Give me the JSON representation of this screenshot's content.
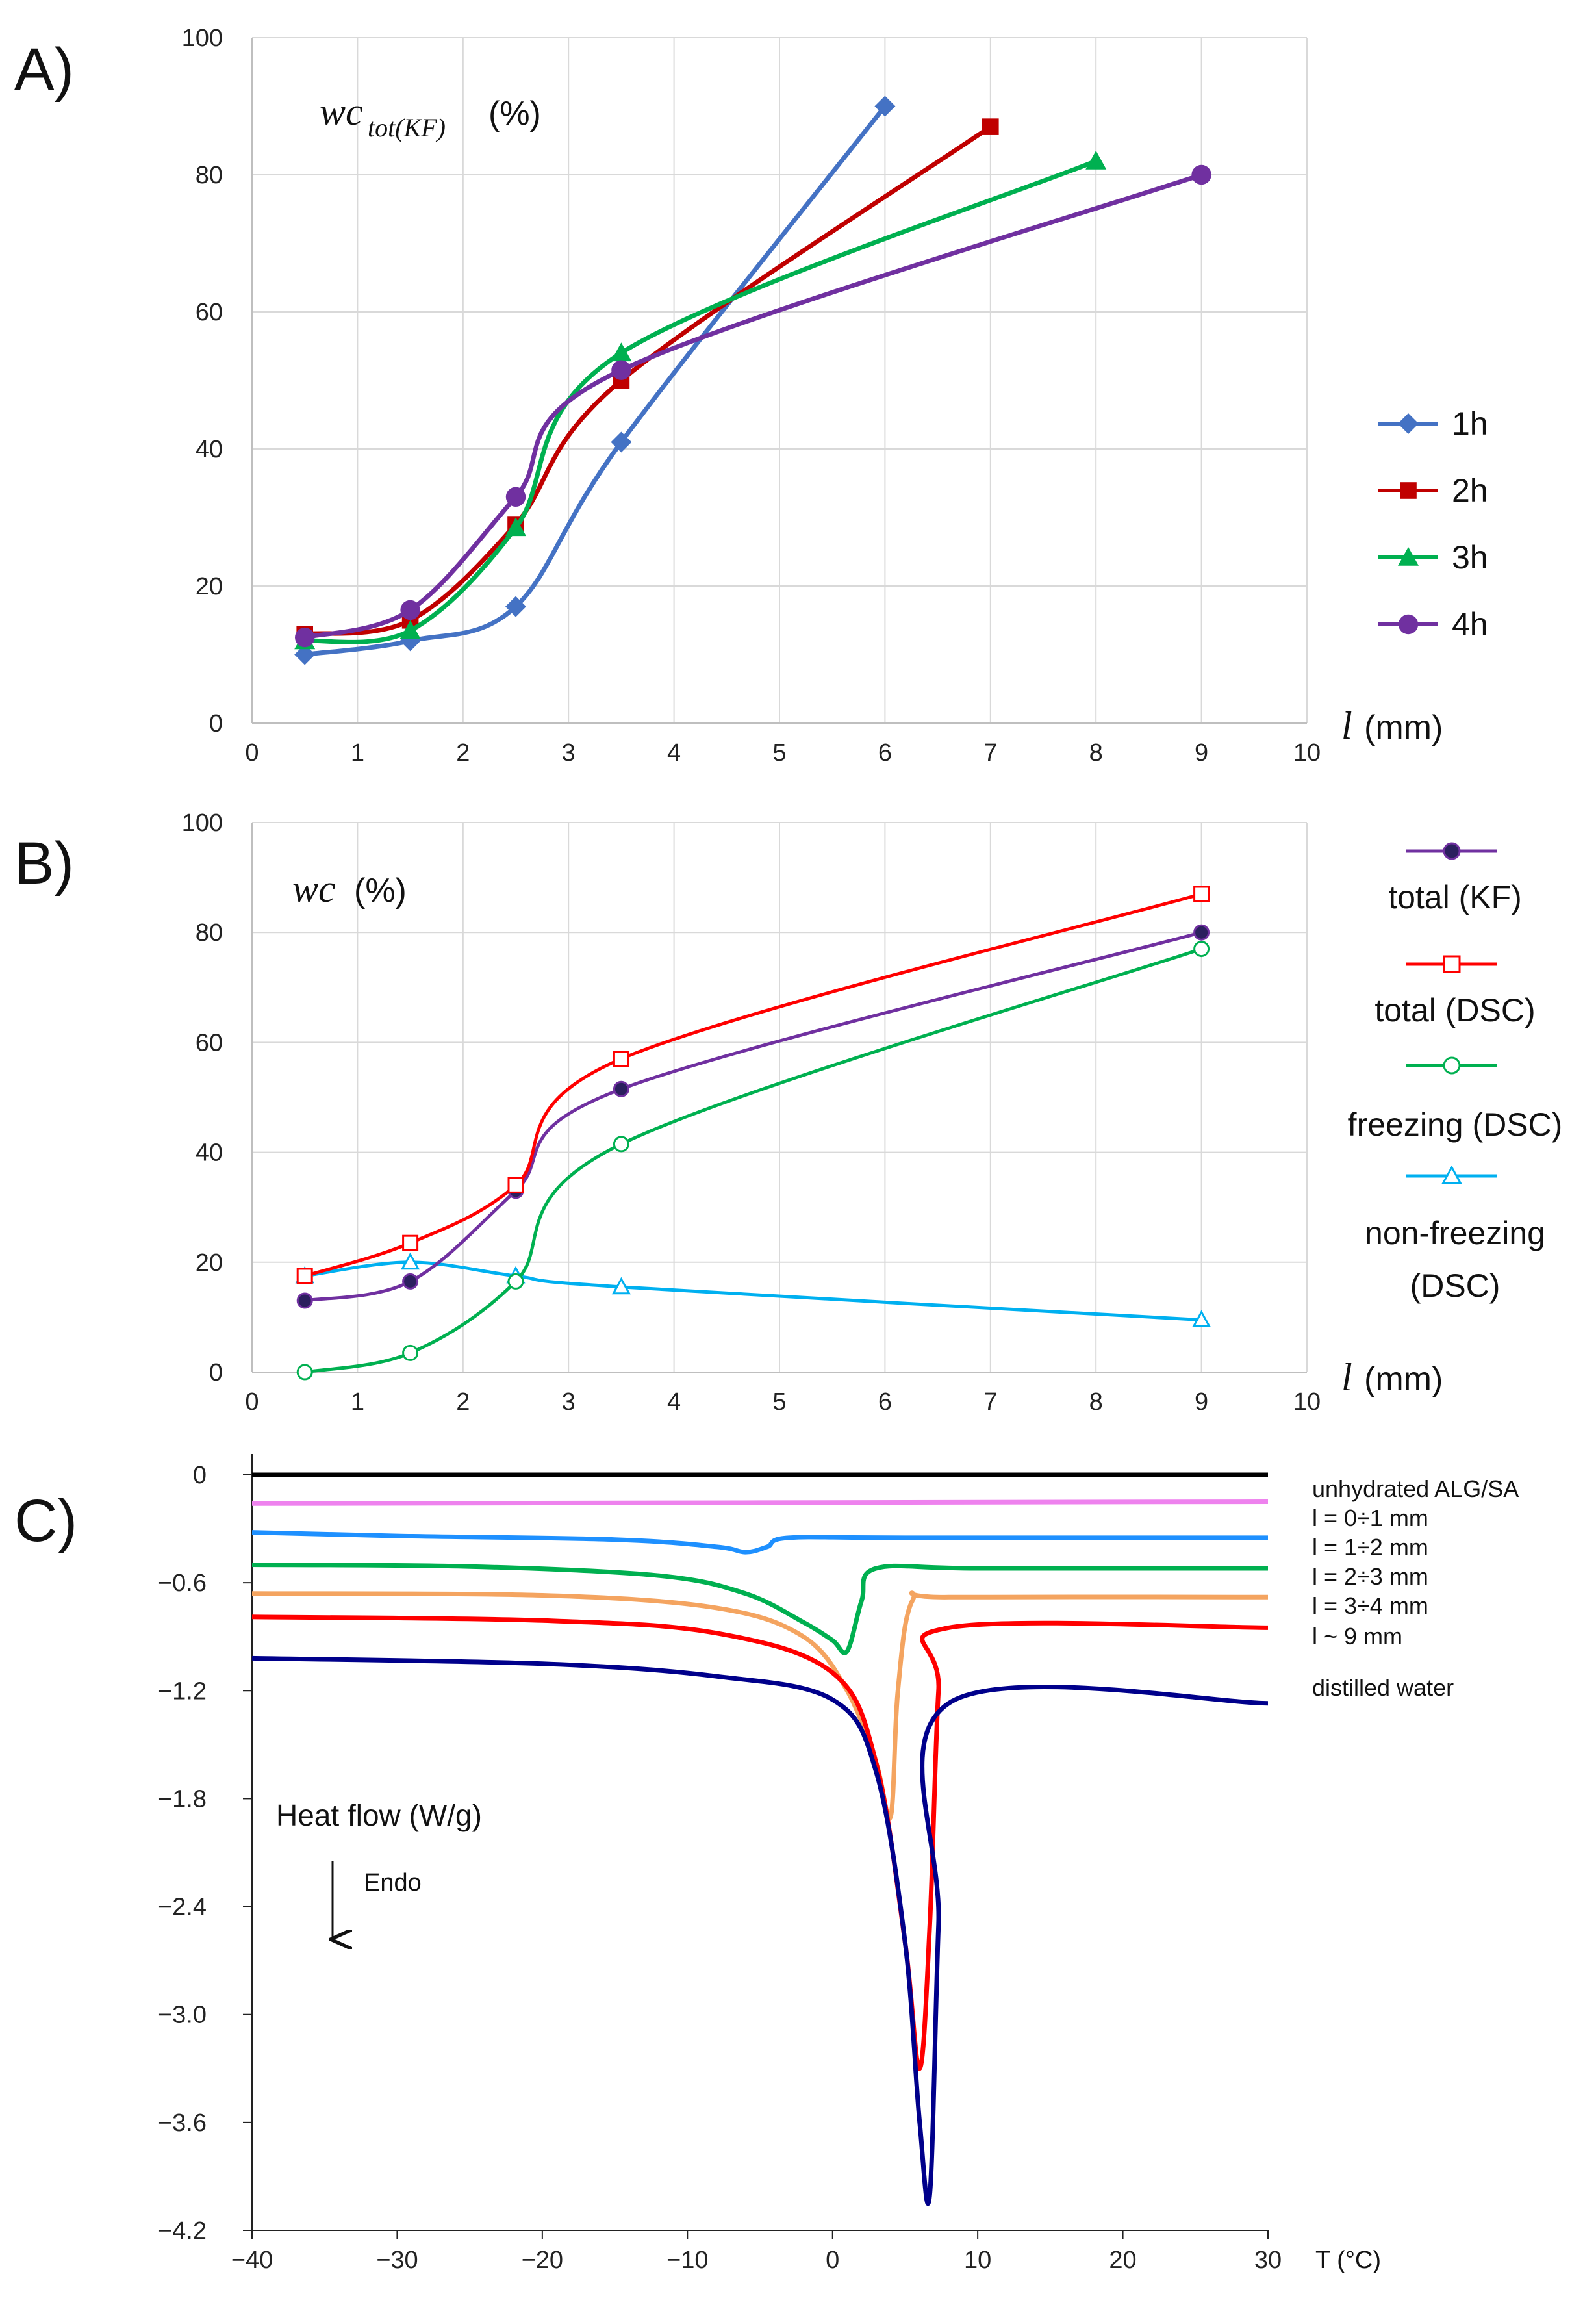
{
  "chart_data": [
    {
      "panel": "A)",
      "type": "line",
      "ylabel_var": "wc",
      "ylabel_sub": "tot(KF)",
      "ylabel_unit": "(%)",
      "xlabel_var": "l",
      "xlabel_unit": "(mm)",
      "xlim": [
        0,
        10
      ],
      "ylim": [
        0,
        100
      ],
      "xticks": [
        "0",
        "1",
        "2",
        "3",
        "4",
        "5",
        "6",
        "7",
        "8",
        "9",
        "10"
      ],
      "yticks": [
        "0",
        "20",
        "40",
        "60",
        "80",
        "100"
      ],
      "grid": true,
      "legend_position": "right",
      "series": [
        {
          "name": "1h",
          "color": "#4472C4",
          "marker": "diamond",
          "x": [
            0.5,
            1.5,
            2.5,
            3.5,
            6
          ],
          "y": [
            10,
            12,
            17,
            41,
            90
          ]
        },
        {
          "name": "2h",
          "color": "#C00000",
          "marker": "square",
          "x": [
            0.5,
            1.5,
            2.5,
            3.5,
            7
          ],
          "y": [
            13,
            15,
            29,
            50,
            87
          ]
        },
        {
          "name": "3h",
          "color": "#00B050",
          "marker": "triangle",
          "x": [
            0.5,
            1.5,
            2.5,
            3.5,
            8
          ],
          "y": [
            12,
            13.5,
            28.5,
            54,
            82
          ]
        },
        {
          "name": "4h",
          "color": "#7030A0",
          "marker": "circle",
          "x": [
            0.5,
            1.5,
            2.5,
            3.5,
            9
          ],
          "y": [
            12.5,
            16.5,
            33,
            51.5,
            80
          ]
        }
      ]
    },
    {
      "panel": "B)",
      "type": "line",
      "ylabel_var": "wc",
      "ylabel_unit": "(%)",
      "xlabel_var": "l",
      "xlabel_unit": "(mm)",
      "xlim": [
        0,
        10
      ],
      "ylim": [
        0,
        100
      ],
      "xticks": [
        "0",
        "1",
        "2",
        "3",
        "4",
        "5",
        "6",
        "7",
        "8",
        "9",
        "10"
      ],
      "yticks": [
        "0",
        "20",
        "40",
        "60",
        "80",
        "100"
      ],
      "grid": true,
      "legend_position": "right",
      "series": [
        {
          "name": "total (KF)",
          "color": "#7030A0",
          "marker": "filled-circle",
          "x": [
            0.5,
            1.5,
            2.5,
            3.5,
            9
          ],
          "y": [
            13,
            16.5,
            33,
            51.5,
            80
          ]
        },
        {
          "name": "total (DSC)",
          "color": "#FF0000",
          "marker": "open-square",
          "x": [
            0.5,
            1.5,
            2.5,
            3.5,
            9
          ],
          "y": [
            17.5,
            23.5,
            34,
            57,
            87
          ]
        },
        {
          "name": "freezing (DSC)",
          "color": "#00B050",
          "marker": "open-circle",
          "x": [
            0.5,
            1.5,
            2.5,
            3.5,
            9
          ],
          "y": [
            0,
            3.5,
            16.5,
            41.5,
            77
          ]
        },
        {
          "name": "non-freezing (DSC)",
          "color": "#00B0F0",
          "marker": "open-triangle",
          "x": [
            0.5,
            1.5,
            2.5,
            3.5,
            9
          ],
          "y": [
            17.5,
            20,
            17.5,
            15.5,
            9.5
          ]
        }
      ]
    },
    {
      "panel": "C)",
      "type": "line",
      "ylabel": "Heat flow (W/g)",
      "annotation_arrow": "Endo",
      "xlabel": "T (°C)",
      "xlim": [
        -40,
        30
      ],
      "ylim": [
        -4.2,
        0.2
      ],
      "xticks": [
        "−40",
        "−30",
        "−20",
        "−10",
        "0",
        "10",
        "20",
        "30"
      ],
      "yticks": [
        "0",
        "−0.6",
        "−1.2",
        "−1.8",
        "−2.4",
        "−3.0",
        "−3.6",
        "−4.2"
      ],
      "grid": false,
      "legend_position": "right",
      "series": [
        {
          "name": "unhydrated ALG/SA",
          "color": "#000000",
          "x": [
            -40,
            30
          ],
          "y": [
            0,
            0
          ]
        },
        {
          "name": "l = 0÷1 mm",
          "color": "#EE82EE",
          "x": [
            -40,
            30
          ],
          "y": [
            -0.16,
            -0.15
          ]
        },
        {
          "name": "l = 1÷2 mm",
          "color": "#1E90FF",
          "x": [
            -40,
            -30,
            -15,
            -8,
            -6,
            -4.5,
            -3,
            5,
            30
          ],
          "y": [
            -0.32,
            -0.34,
            -0.36,
            -0.4,
            -0.43,
            -0.4,
            -0.35,
            -0.35,
            -0.35
          ]
        },
        {
          "name": "l = 2÷3 mm",
          "color": "#00B050",
          "x": [
            -40,
            -25,
            -12,
            -6,
            -2,
            0,
            1,
            2,
            3,
            10,
            30
          ],
          "y": [
            -0.5,
            -0.51,
            -0.56,
            -0.66,
            -0.82,
            -0.92,
            -0.98,
            -0.7,
            -0.52,
            -0.52,
            -0.52
          ]
        },
        {
          "name": "l = 3÷4 mm",
          "color": "#F4A460",
          "x": [
            -40,
            -20,
            -8,
            -2,
            1,
            3,
            4,
            4.5,
            5.5,
            8,
            30
          ],
          "y": [
            -0.66,
            -0.67,
            -0.74,
            -0.9,
            -1.2,
            -1.6,
            -1.9,
            -1.2,
            -0.7,
            -0.68,
            -0.68
          ]
        },
        {
          "name": "l ~ 9 mm",
          "color": "#FF0000",
          "x": [
            -40,
            -20,
            -8,
            0,
            3,
            5,
            6,
            6.7,
            7.3,
            8,
            30
          ],
          "y": [
            -0.79,
            -0.81,
            -0.88,
            -1.1,
            -1.6,
            -2.6,
            -3.3,
            -2.5,
            -1.2,
            -0.85,
            -0.85
          ]
        },
        {
          "name": "distilled water",
          "color": "#00008B",
          "x": [
            -40,
            -20,
            -8,
            0,
            3,
            5,
            6,
            6.7,
            7.3,
            8,
            30
          ],
          "y": [
            -1.02,
            -1.05,
            -1.12,
            -1.25,
            -1.65,
            -2.6,
            -3.6,
            -4.0,
            -2.5,
            -1.27,
            -1.27
          ]
        }
      ]
    }
  ]
}
